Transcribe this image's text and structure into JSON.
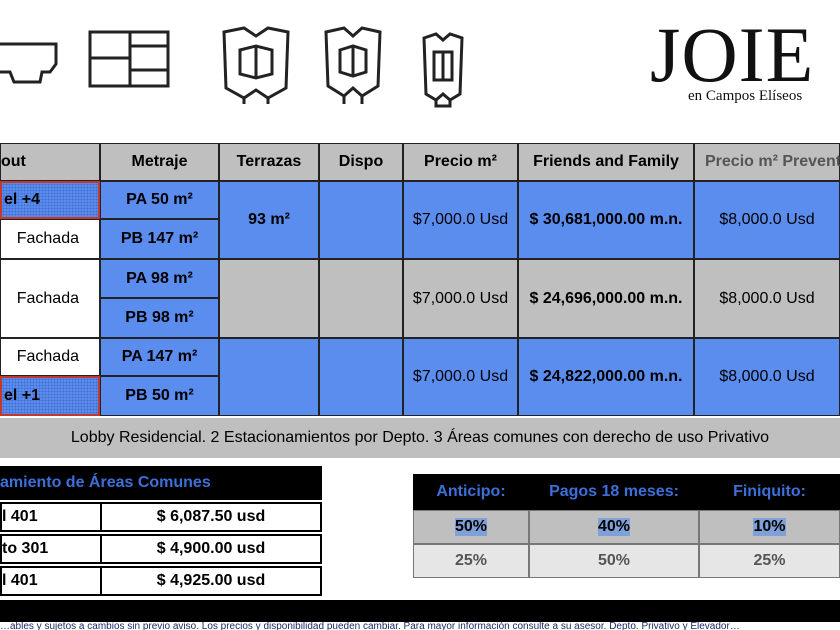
{
  "logo": {
    "name": "JOIE",
    "subtitle": "en Campos Elíseos"
  },
  "icons": [
    "floorplan-icon-1",
    "floorplan-icon-2",
    "floorplan-icon-3",
    "floorplan-icon-4",
    "floorplan-icon-5"
  ],
  "table": {
    "headers": [
      "out",
      "Metraje",
      "Terrazas",
      "Dispo",
      "Precio m²",
      "Friends and Family",
      "Precio m² Prevent"
    ],
    "rows": [
      {
        "layout": "el +4",
        "metraje": "PA 50 m²",
        "terrazas": "93 m²",
        "precio": "$7,000.0 Usd",
        "ff": "$ 30,681,000.00 m.n.",
        "preventa": "$8,000.0 Usd"
      },
      {
        "layout": "Fachada",
        "metraje": "PB 147 m²"
      },
      {
        "layout": "Fachada",
        "metraje": "PA 98 m²",
        "precio": "$7,000.0 Usd",
        "ff": "$ 24,696,000.00 m.n.",
        "preventa": "$8,000.0 Usd"
      },
      {
        "metraje": "PB 98 m²"
      },
      {
        "layout": "Fachada",
        "metraje": "PA 147 m²",
        "precio": "$7,000.0 Usd",
        "ff": "$ 24,822,000.00 m.n.",
        "preventa": "$8,000.0 Usd"
      },
      {
        "layout": "el +1",
        "metraje": "PB 50 m²"
      }
    ],
    "lobby_note": "Lobby Residencial. 2 Estacionamientos por Depto. 3 Áreas comunes con derecho de uso Privativo"
  },
  "maintenance": {
    "title": "amiento de Áreas Comunes",
    "rows": [
      {
        "unit": "l 401",
        "amount": "$ 6,087.50 usd"
      },
      {
        "unit": "to 301",
        "amount": "$ 4,900.00 usd"
      },
      {
        "unit": "l 401",
        "amount": "$ 4,925.00 usd"
      }
    ]
  },
  "payments": {
    "headers": [
      "Anticipo:",
      "Pagos 18 meses:",
      "Finiquito:"
    ],
    "rows": [
      [
        "50%",
        "40%",
        "10%"
      ],
      [
        "25%",
        "50%",
        "25%"
      ]
    ]
  },
  "footer_text": "…ables y sujetos a cambios sin previo aviso. Los precios y disponibilidad pueden cambiar. Para mayor información consulte a su asesor. Depto. Privativo y Elevador…",
  "colors": {
    "blue": "#5b8def",
    "gray": "#bfbfbf",
    "header_text_blue": "#3d6fd8",
    "border_red": "#c0392b"
  }
}
